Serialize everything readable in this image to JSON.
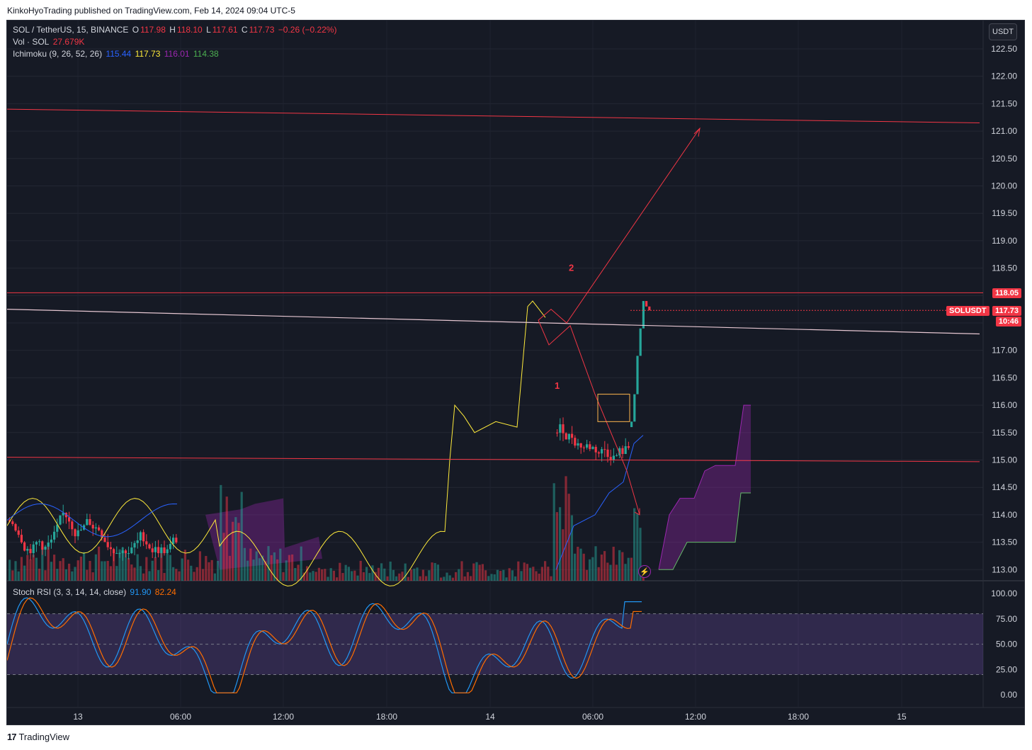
{
  "header": {
    "publish_line": "KinkoHyoTrading published on TradingView.com, Feb 14, 2024 09:04 UTC-5"
  },
  "footer": {
    "brand": "TradingView",
    "brand_mark": "17"
  },
  "chart": {
    "symbol_line": "SOL / TetherUS, 15, BINANCE",
    "ohlc": {
      "o_label": "O",
      "o": "117.98",
      "h_label": "H",
      "h": "118.10",
      "l_label": "L",
      "l": "117.61",
      "c_label": "C",
      "c": "117.73",
      "change": "−0.26 (−0.22%)"
    },
    "volume": {
      "label": "Vol · SOL",
      "value": "27.679K"
    },
    "ichimoku": {
      "label": "Ichimoku (9, 26, 52, 26)",
      "v1": "115.44",
      "v2": "117.73",
      "v3": "116.01",
      "v4": "114.38"
    },
    "currency_button": "USDT",
    "price_axis": [
      "122.50",
      "122.00",
      "121.50",
      "121.00",
      "120.50",
      "120.00",
      "119.50",
      "119.00",
      "118.50",
      "118.05",
      "117.00",
      "116.50",
      "116.00",
      "115.50",
      "115.00",
      "114.50",
      "114.00",
      "113.50",
      "113.00"
    ],
    "badges": {
      "high": "118.05",
      "symbol": "SOLUSDT",
      "last": "117.73",
      "countdown": "10:46"
    },
    "annotations": {
      "wave1": "1",
      "wave2": "2"
    },
    "colors": {
      "up": "#26a69a",
      "down": "#f23645",
      "background": "#161a25",
      "tenkan": "#2962ff",
      "kijun_line": "#ffeb3b",
      "cloud": "#9c27b0",
      "trend": "#f23645",
      "neck": "#e6c7d2"
    }
  },
  "stoch": {
    "label": "Stoch RSI (3, 3, 14, 14, close)",
    "k": "91.90",
    "d": "82.24",
    "axis": [
      "100.00",
      "75.00",
      "50.00",
      "25.00",
      "0.00"
    ]
  },
  "time_axis": [
    "13",
    "06:00",
    "12:00",
    "18:00",
    "14",
    "06:00",
    "12:00",
    "18:00",
    "15"
  ]
}
